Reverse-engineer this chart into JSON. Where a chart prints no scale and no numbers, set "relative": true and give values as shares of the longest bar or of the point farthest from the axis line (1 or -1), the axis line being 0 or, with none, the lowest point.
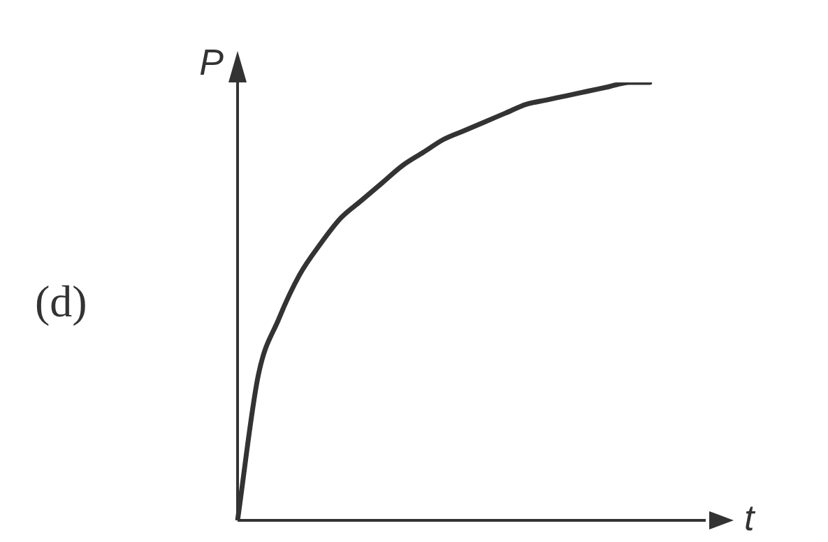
{
  "chart_data": {
    "type": "line",
    "xlabel": "t",
    "ylabel": "P",
    "annotations": [
      "(d)"
    ],
    "relative": true,
    "marker": "none",
    "legend": false,
    "tick_labels": false,
    "categories": [
      null,
      null,
      null,
      null,
      null,
      null,
      null,
      null,
      null,
      null,
      null,
      null,
      null,
      null,
      null,
      null,
      null,
      null,
      null,
      null,
      null
    ],
    "series": [
      {
        "color": "#333333",
        "values": [
          0,
          0.33,
          0.46,
          0.56,
          0.63,
          0.69,
          0.73,
          0.77,
          0.81,
          0.84,
          0.87,
          0.89,
          0.91,
          0.93,
          0.95,
          0.96,
          0.97,
          0.98,
          0.99,
          1.0,
          1.0
        ]
      }
    ]
  }
}
